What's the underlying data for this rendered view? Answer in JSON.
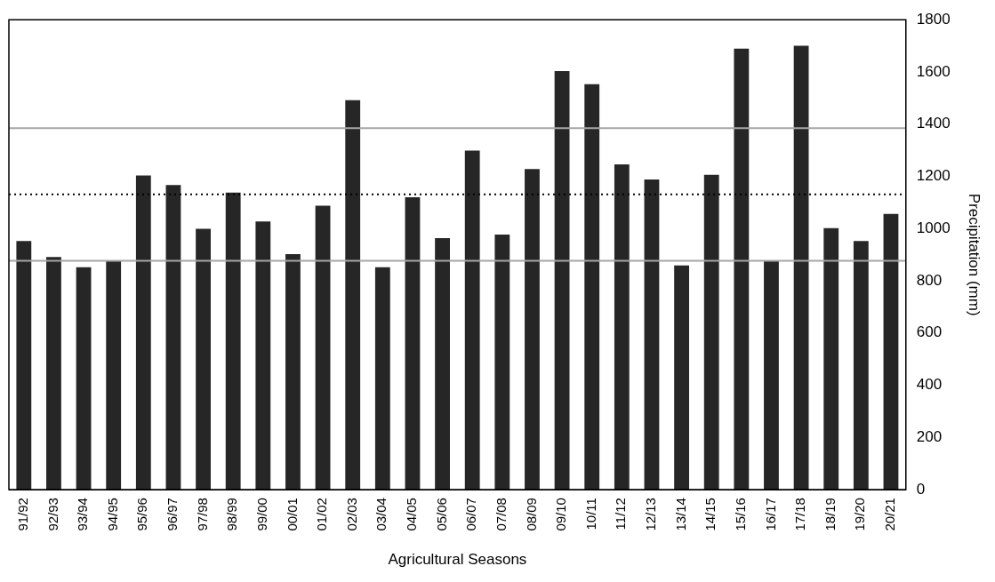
{
  "chart_data": {
    "type": "bar",
    "xlabel": "Agricultural Seasons",
    "ylabel": "Precipitation (mm)",
    "categories": [
      "91/92",
      "92/93",
      "93/94",
      "94/95",
      "95/96",
      "96/97",
      "97/98",
      "98/99",
      "99/00",
      "00/01",
      "01/02",
      "02/03",
      "03/04",
      "04/05",
      "05/06",
      "06/07",
      "07/08",
      "08/09",
      "09/10",
      "10/11",
      "11/12",
      "12/13",
      "13/14",
      "14/15",
      "15/16",
      "16/17",
      "17/18",
      "18/19",
      "19/20",
      "20/21"
    ],
    "values": [
      952,
      891,
      852,
      877,
      1203,
      1167,
      999,
      1138,
      1027,
      902,
      1088,
      1492,
      852,
      1120,
      963,
      1299,
      977,
      1228,
      1603,
      1553,
      1246,
      1188,
      859,
      1206,
      1689,
      877,
      1700,
      1002,
      952,
      1056
    ],
    "color": "#262626",
    "ylim": [
      0,
      1800
    ],
    "yticks": [
      0,
      200,
      400,
      600,
      800,
      1000,
      1200,
      1400,
      1600,
      1800
    ],
    "ref_lines": [
      {
        "axis": "y",
        "value": 1385,
        "color": "#a6a6a6",
        "line_style": "solid"
      },
      {
        "axis": "y",
        "value": 1131,
        "color": "#000000",
        "line_style": "dotted"
      },
      {
        "axis": "y",
        "value": 877,
        "color": "#a6a6a6",
        "line_style": "solid"
      }
    ]
  }
}
